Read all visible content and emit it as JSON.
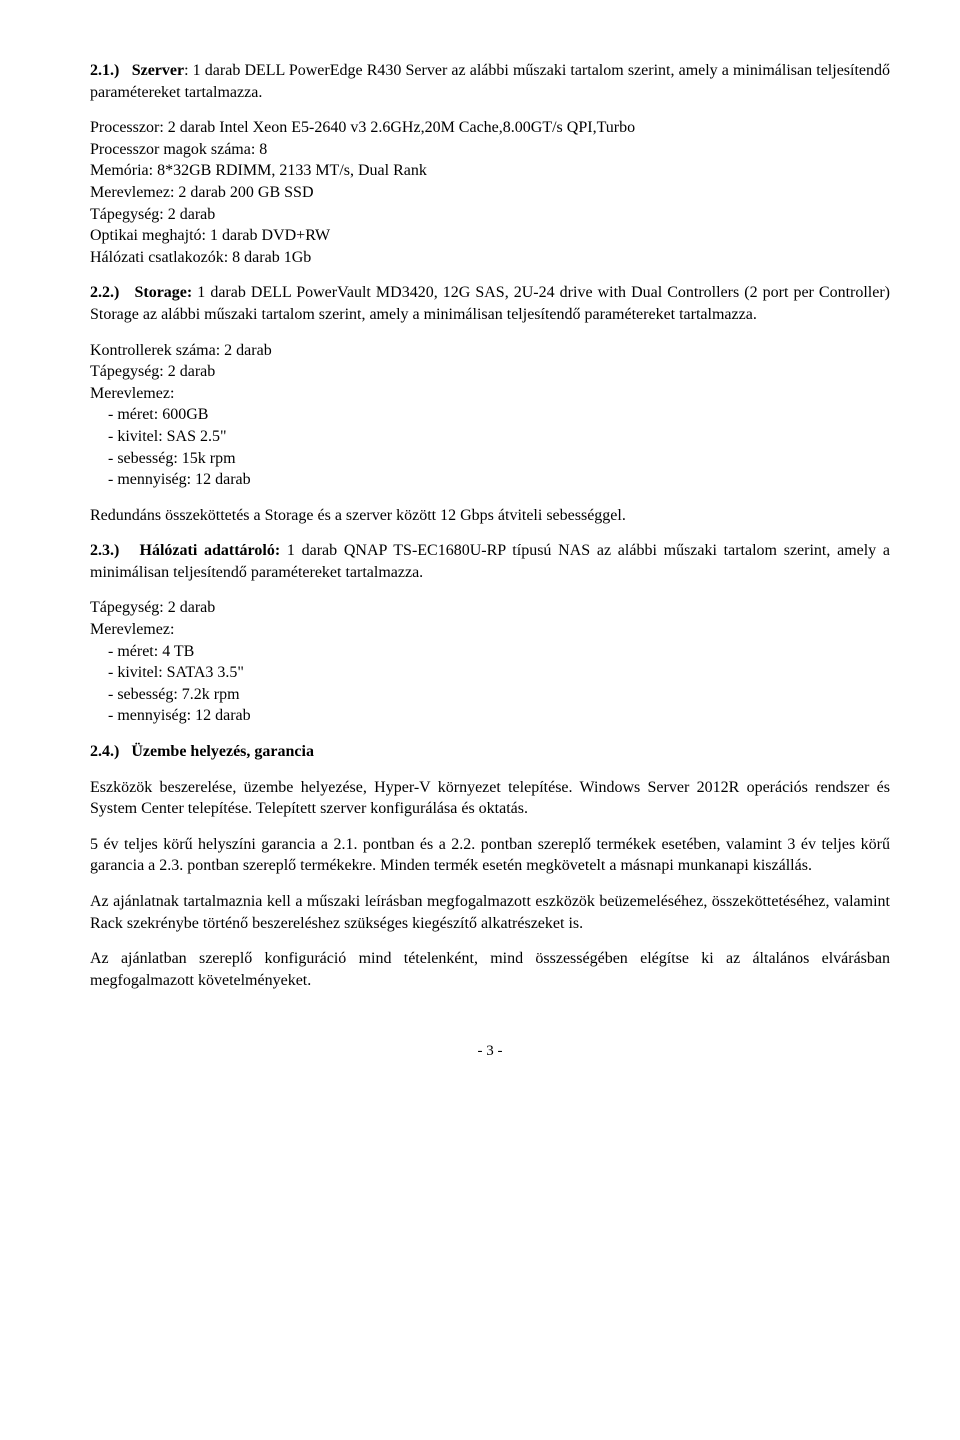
{
  "s21": {
    "num": "2.1.)",
    "label": "Szerver",
    "intro": ": 1 darab DELL PowerEdge R430 Server az alábbi műszaki tartalom szerint, amely a minimálisan teljesítendő paramétereket tartalmazza.",
    "specs": [
      "Processzor: 2 darab Intel Xeon E5-2640 v3 2.6GHz,20M Cache,8.00GT/s QPI,Turbo",
      "Processzor magok száma: 8",
      "Memória: 8*32GB RDIMM, 2133 MT/s, Dual Rank",
      "Merevlemez: 2 darab 200 GB SSD",
      "Tápegység: 2 darab",
      "Optikai meghajtó: 1 darab DVD+RW",
      "Hálózati csatlakozók: 8 darab 1Gb"
    ]
  },
  "s22": {
    "num": "2.2.)",
    "label": "Storage:",
    "intro": " 1 darab DELL PowerVault MD3420, 12G SAS, 2U-24 drive with Dual Controllers (2 port per Controller) Storage az alábbi műszaki tartalom szerint, amely a minimálisan teljesítendő paramétereket tartalmazza.",
    "specs_top": [
      "Kontrollerek száma: 2 darab",
      "Tápegység: 2 darab",
      "Merevlemez:"
    ],
    "specs_sub": [
      "- méret: 600GB",
      "- kivitel: SAS 2.5\"",
      "- sebesség: 15k rpm",
      "- mennyiség: 12 darab"
    ],
    "redund": "Redundáns összeköttetés a Storage és a szerver között 12 Gbps átviteli sebességgel."
  },
  "s23": {
    "num": "2.3.)",
    "label": "Hálózati adattároló:",
    "intro": " 1 darab QNAP TS-EC1680U-RP típusú NAS az alábbi műszaki tartalom szerint, amely a minimálisan teljesítendő paramétereket tartalmazza.",
    "specs_top": [
      "Tápegység: 2 darab",
      "Merevlemez:"
    ],
    "specs_sub": [
      "- méret: 4 TB",
      "- kivitel: SATA3 3.5\"",
      "- sebesség: 7.2k rpm",
      "- mennyiség: 12 darab"
    ]
  },
  "s24": {
    "num": "2.4.)",
    "title": "Üzembe helyezés, garancia",
    "p1": "Eszközök beszerelése, üzembe helyezése, Hyper-V környezet telepítése. Windows Server 2012R operációs rendszer és System Center telepítése. Telepített szerver konfigurálása és oktatás.",
    "p2": "5 év teljes körű helyszíni garancia a 2.1. pontban és a 2.2. pontban szereplő termékek esetében, valamint 3 év teljes körű garancia a 2.3. pontban szereplő termékekre. Minden termék esetén megkövetelt a másnapi munkanapi kiszállás.",
    "p3": "Az ajánlatnak tartalmaznia kell a műszaki leírásban megfogalmazott eszközök beüzemeléséhez, összeköttetéséhez, valamint Rack szekrénybe történő beszereléshez szükséges kiegészítő alkatrészeket is.",
    "p4": "Az ajánlatban szereplő konfiguráció mind tételenként, mind összességében elégítse ki az általános elvárásban megfogalmazott követelményeket."
  },
  "page_number": "- 3 -"
}
